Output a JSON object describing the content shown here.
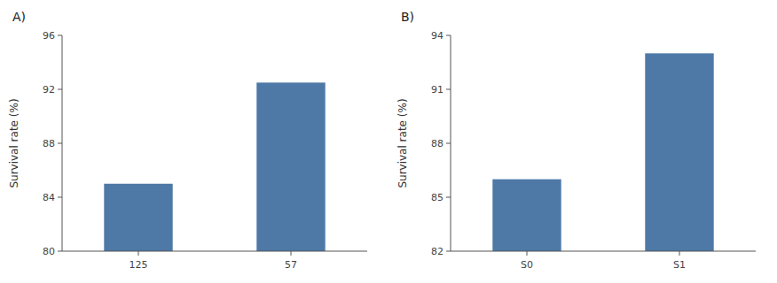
{
  "chart_data": [
    {
      "type": "bar",
      "title": "A)",
      "ylabel": "Survival rate (%)",
      "categories": [
        "125",
        "57"
      ],
      "values": [
        85.0,
        92.5
      ],
      "color": "#4e79a7",
      "ylim": [
        80,
        96
      ],
      "yticks": [
        80,
        84,
        88,
        92,
        96
      ],
      "grid": false
    },
    {
      "type": "bar",
      "title": "B)",
      "ylabel": "Survival rate (%)",
      "categories": [
        "S0",
        "S1"
      ],
      "values": [
        86.0,
        93.0
      ],
      "color": "#4e79a7",
      "ylim": [
        82,
        94
      ],
      "yticks": [
        82,
        85,
        88,
        91,
        94
      ],
      "grid": false
    }
  ]
}
